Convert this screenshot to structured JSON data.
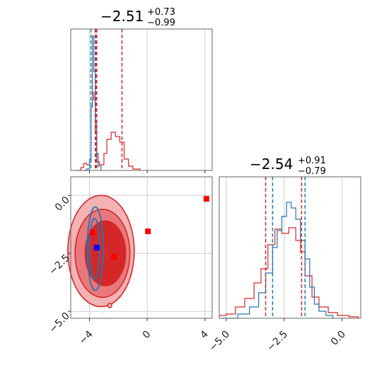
{
  "chart_data": {
    "type": "corner",
    "colors": {
      "blue": "#1f77b4",
      "red": "#d62728",
      "red_fill": "#f0a3a5",
      "marker_blue": "#0000ff",
      "marker_red": "#ff0000",
      "grid": "#c8c8c8"
    },
    "titles": [
      {
        "main": "−2.51",
        "sup": "+0.73",
        "sub": "−0.99"
      },
      {
        "main": "−2.54",
        "sup": "+0.91",
        "sub": "−0.79"
      }
    ],
    "param1_axis": {
      "range": [
        -5.3,
        4.5
      ],
      "ticks": [
        -4,
        0,
        4
      ],
      "tick_labels": [
        "−4",
        "0",
        "4"
      ]
    },
    "param2_axis": {
      "range": [
        -5.3,
        0.8
      ],
      "ticks": [
        -5,
        -2.5,
        0
      ],
      "tick_labels": [
        "−5.0",
        "−2.5",
        "0.0"
      ]
    },
    "hist1": {
      "blue_quantiles": [
        -3.9,
        -3.55
      ],
      "red_quantiles": [
        -3.5,
        -3.6,
        -1.75
      ],
      "blue": [
        [
          -4.4,
          0
        ],
        [
          -4.2,
          0.01
        ],
        [
          -4.0,
          0.08
        ],
        [
          -3.9,
          0.45
        ],
        [
          -3.8,
          0.95
        ],
        [
          -3.7,
          0.7
        ],
        [
          -3.6,
          0.35
        ],
        [
          -3.5,
          0.12
        ],
        [
          -3.4,
          0.03
        ],
        [
          -3.2,
          0
        ]
      ],
      "red": [
        [
          -5.0,
          0
        ],
        [
          -4.6,
          0.02
        ],
        [
          -4.4,
          0.05
        ],
        [
          -4.2,
          0.04
        ],
        [
          -4.0,
          0.06
        ],
        [
          -3.9,
          0.45
        ],
        [
          -3.8,
          0.55
        ],
        [
          -3.7,
          0.5
        ],
        [
          -3.6,
          0.28
        ],
        [
          -3.5,
          0.06
        ],
        [
          -3.3,
          0.04
        ],
        [
          -3.0,
          0.12
        ],
        [
          -2.8,
          0.22
        ],
        [
          -2.5,
          0.27
        ],
        [
          -2.2,
          0.24
        ],
        [
          -1.9,
          0.2
        ],
        [
          -1.6,
          0.08
        ],
        [
          -1.3,
          0.03
        ],
        [
          -1.0,
          0.01
        ],
        [
          -0.5,
          0
        ]
      ]
    },
    "hist2": {
      "blue_quantiles": [
        -3.0,
        -1.6
      ],
      "red_quantiles": [
        -3.3,
        -1.75
      ],
      "blue": [
        [
          -5.2,
          0
        ],
        [
          -4.5,
          0.03
        ],
        [
          -4.0,
          0.08
        ],
        [
          -3.6,
          0.18
        ],
        [
          -3.3,
          0.32
        ],
        [
          -3.0,
          0.5
        ],
        [
          -2.8,
          0.62
        ],
        [
          -2.6,
          0.72
        ],
        [
          -2.4,
          0.82
        ],
        [
          -2.2,
          0.78
        ],
        [
          -2.0,
          0.7
        ],
        [
          -1.8,
          0.55
        ],
        [
          -1.6,
          0.42
        ],
        [
          -1.4,
          0.22
        ],
        [
          -1.2,
          0.1
        ],
        [
          -1.0,
          0.05
        ],
        [
          -0.7,
          0.02
        ],
        [
          -0.4,
          0
        ]
      ],
      "red": [
        [
          -5.3,
          0.02
        ],
        [
          -5.0,
          0.03
        ],
        [
          -4.6,
          0.08
        ],
        [
          -4.2,
          0.14
        ],
        [
          -3.8,
          0.25
        ],
        [
          -3.5,
          0.35
        ],
        [
          -3.2,
          0.52
        ],
        [
          -2.9,
          0.63
        ],
        [
          -2.6,
          0.6
        ],
        [
          -2.3,
          0.64
        ],
        [
          -2.0,
          0.55
        ],
        [
          -1.8,
          0.47
        ],
        [
          -1.6,
          0.3
        ],
        [
          -1.3,
          0.15
        ],
        [
          -1.0,
          0.08
        ],
        [
          -0.6,
          0.04
        ],
        [
          -0.2,
          0.02
        ],
        [
          0.3,
          0.01
        ],
        [
          0.7,
          0
        ]
      ]
    },
    "scatter_2d": {
      "red_contour_levels": [
        {
          "cx": -3.2,
          "cy": -2.4,
          "rx": 2.3,
          "ry": 2.4
        },
        {
          "cx": -3.1,
          "cy": -2.5,
          "rx": 1.9,
          "ry": 1.9
        },
        {
          "cx": -2.9,
          "cy": -2.5,
          "rx": 1.4,
          "ry": 1.4
        }
      ],
      "blue_contour_levels": [
        {
          "cx": -3.6,
          "cy": -2.3,
          "rx": 0.55,
          "ry": 1.8
        },
        {
          "cx": -3.65,
          "cy": -2.3,
          "rx": 0.35,
          "ry": 1.3
        }
      ],
      "markers": [
        {
          "x": 4.1,
          "y": -0.15,
          "color": "red"
        },
        {
          "x": 0.05,
          "y": -1.55,
          "color": "red"
        },
        {
          "x": -3.8,
          "y": -1.6,
          "color": "red"
        },
        {
          "x": -2.3,
          "y": -2.65,
          "color": "red"
        },
        {
          "x": -3.5,
          "y": -2.25,
          "color": "blue"
        }
      ]
    }
  }
}
